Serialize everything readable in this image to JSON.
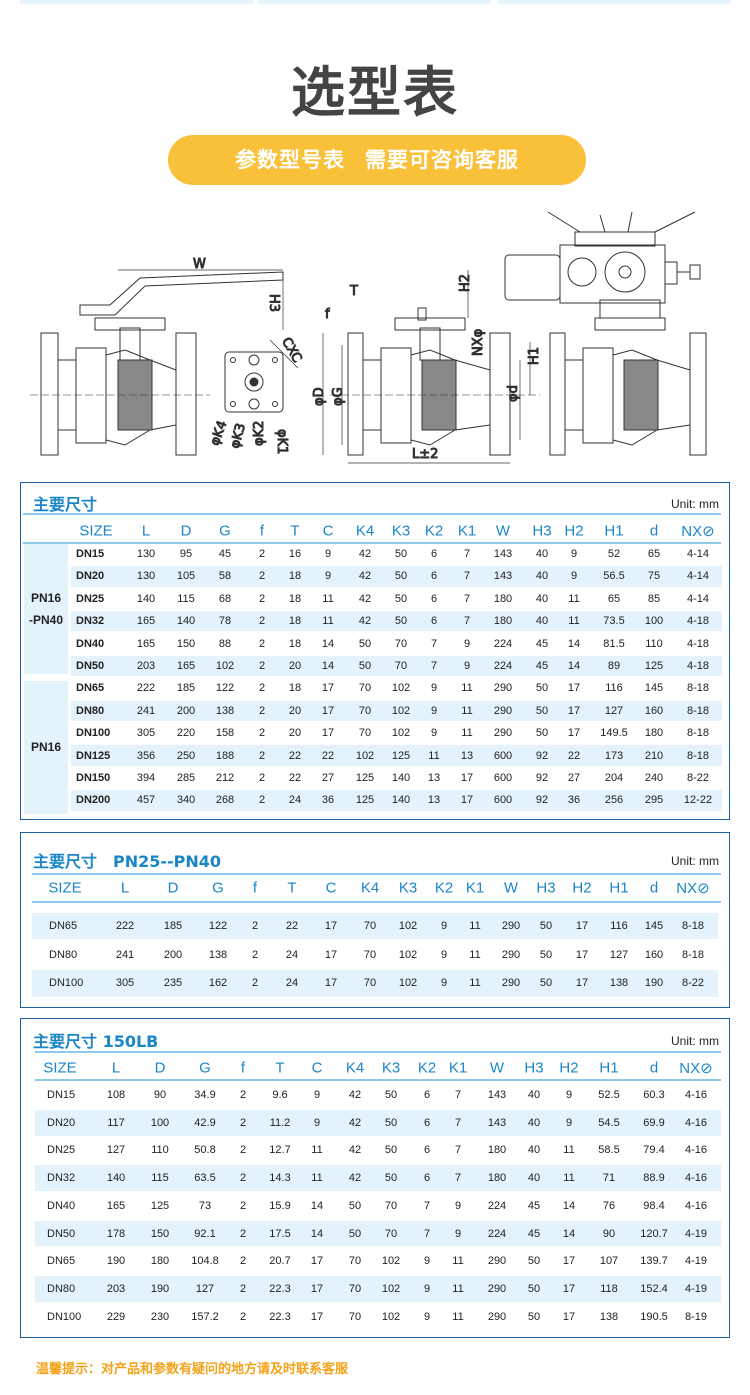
{
  "header": {
    "title": "选型表",
    "pill_left": "参数型号表",
    "pill_right": "需要可咨询客服"
  },
  "drawing": {
    "labels": {
      "W": "W",
      "H3": "H3",
      "CXC": "CXC",
      "K4": "φK4",
      "K3": "φK3",
      "K2": "φK2",
      "K1": "φK1",
      "T": "T",
      "f": "f",
      "D": "φD",
      "G": "φG",
      "L": "L±2",
      "H2": "H2",
      "NX": "NXφ",
      "H1": "H1",
      "d": "φd"
    }
  },
  "columns": [
    "SIZE",
    "L",
    "D",
    "G",
    "f",
    "T",
    "C",
    "K4",
    "K3",
    "K2",
    "K1",
    "W",
    "H3",
    "H2",
    "H1",
    "d",
    "NX⊘"
  ],
  "tables": [
    {
      "title": "主要尺寸",
      "unit": "Unit: mm",
      "groups": [
        {
          "label": "PN16\n-PN40",
          "rows": 6
        },
        {
          "label": "PN16",
          "rows": 6
        }
      ],
      "rows": [
        [
          "DN15",
          "130",
          "95",
          "45",
          "2",
          "16",
          "9",
          "42",
          "50",
          "6",
          "7",
          "143",
          "40",
          "9",
          "52",
          "65",
          "4-14"
        ],
        [
          "DN20",
          "130",
          "105",
          "58",
          "2",
          "18",
          "9",
          "42",
          "50",
          "6",
          "7",
          "143",
          "40",
          "9",
          "56.5",
          "75",
          "4-14"
        ],
        [
          "DN25",
          "140",
          "115",
          "68",
          "2",
          "18",
          "11",
          "42",
          "50",
          "6",
          "7",
          "180",
          "40",
          "11",
          "65",
          "85",
          "4-14"
        ],
        [
          "DN32",
          "165",
          "140",
          "78",
          "2",
          "18",
          "11",
          "42",
          "50",
          "6",
          "7",
          "180",
          "40",
          "11",
          "73.5",
          "100",
          "4-18"
        ],
        [
          "DN40",
          "165",
          "150",
          "88",
          "2",
          "18",
          "14",
          "50",
          "70",
          "7",
          "9",
          "224",
          "45",
          "14",
          "81.5",
          "110",
          "4-18"
        ],
        [
          "DN50",
          "203",
          "165",
          "102",
          "2",
          "20",
          "14",
          "50",
          "70",
          "7",
          "9",
          "224",
          "45",
          "14",
          "89",
          "125",
          "4-18"
        ],
        [
          "DN65",
          "222",
          "185",
          "122",
          "2",
          "18",
          "17",
          "70",
          "102",
          "9",
          "11",
          "290",
          "50",
          "17",
          "116",
          "145",
          "8-18"
        ],
        [
          "DN80",
          "241",
          "200",
          "138",
          "2",
          "20",
          "17",
          "70",
          "102",
          "9",
          "11",
          "290",
          "50",
          "17",
          "127",
          "160",
          "8-18"
        ],
        [
          "DN100",
          "305",
          "220",
          "158",
          "2",
          "20",
          "17",
          "70",
          "102",
          "9",
          "11",
          "290",
          "50",
          "17",
          "149.5",
          "180",
          "8-18"
        ],
        [
          "DN125",
          "356",
          "250",
          "188",
          "2",
          "22",
          "22",
          "102",
          "125",
          "11",
          "13",
          "600",
          "92",
          "22",
          "173",
          "210",
          "8-18"
        ],
        [
          "DN150",
          "394",
          "285",
          "212",
          "2",
          "22",
          "27",
          "125",
          "140",
          "13",
          "17",
          "600",
          "92",
          "27",
          "204",
          "240",
          "8-22"
        ],
        [
          "DN200",
          "457",
          "340",
          "268",
          "2",
          "24",
          "36",
          "125",
          "140",
          "13",
          "17",
          "600",
          "92",
          "36",
          "256",
          "295",
          "12-22"
        ]
      ]
    },
    {
      "title": "主要尺寸　PN25--PN40",
      "unit": "Unit: mm",
      "rows": [
        [
          "DN65",
          "222",
          "185",
          "122",
          "2",
          "22",
          "17",
          "70",
          "102",
          "9",
          "11",
          "290",
          "50",
          "17",
          "116",
          "145",
          "8-18"
        ],
        [
          "DN80",
          "241",
          "200",
          "138",
          "2",
          "24",
          "17",
          "70",
          "102",
          "9",
          "11",
          "290",
          "50",
          "17",
          "127",
          "160",
          "8-18"
        ],
        [
          "DN100",
          "305",
          "235",
          "162",
          "2",
          "24",
          "17",
          "70",
          "102",
          "9",
          "11",
          "290",
          "50",
          "17",
          "138",
          "190",
          "8-22"
        ]
      ]
    },
    {
      "title": "主要尺寸 150LB",
      "unit": "Unit: mm",
      "rows": [
        [
          "DN15",
          "108",
          "90",
          "34.9",
          "2",
          "9.6",
          "9",
          "42",
          "50",
          "6",
          "7",
          "143",
          "40",
          "9",
          "52.5",
          "60.3",
          "4-16"
        ],
        [
          "DN20",
          "117",
          "100",
          "42.9",
          "2",
          "11.2",
          "9",
          "42",
          "50",
          "6",
          "7",
          "143",
          "40",
          "9",
          "54.5",
          "69.9",
          "4-16"
        ],
        [
          "DN25",
          "127",
          "110",
          "50.8",
          "2",
          "12.7",
          "11",
          "42",
          "50",
          "6",
          "7",
          "180",
          "40",
          "11",
          "58.5",
          "79.4",
          "4-16"
        ],
        [
          "DN32",
          "140",
          "115",
          "63.5",
          "2",
          "14.3",
          "11",
          "42",
          "50",
          "6",
          "7",
          "180",
          "40",
          "11",
          "71",
          "88.9",
          "4-16"
        ],
        [
          "DN40",
          "165",
          "125",
          "73",
          "2",
          "15.9",
          "14",
          "50",
          "70",
          "7",
          "9",
          "224",
          "45",
          "14",
          "76",
          "98.4",
          "4-16"
        ],
        [
          "DN50",
          "178",
          "150",
          "92.1",
          "2",
          "17.5",
          "14",
          "50",
          "70",
          "7",
          "9",
          "224",
          "45",
          "14",
          "90",
          "120.7",
          "4-19"
        ],
        [
          "DN65",
          "190",
          "180",
          "104.8",
          "2",
          "20.7",
          "17",
          "70",
          "102",
          "9",
          "11",
          "290",
          "50",
          "17",
          "107",
          "139.7",
          "4-19"
        ],
        [
          "DN80",
          "203",
          "190",
          "127",
          "2",
          "22.3",
          "17",
          "70",
          "102",
          "9",
          "11",
          "290",
          "50",
          "17",
          "118",
          "152.4",
          "4-19"
        ],
        [
          "DN100",
          "229",
          "230",
          "157.2",
          "2",
          "22.3",
          "17",
          "70",
          "102",
          "9",
          "11",
          "290",
          "50",
          "17",
          "138",
          "190.5",
          "8-19"
        ]
      ]
    }
  ],
  "footer": {
    "note": "温馨提示：对产品和参数有疑问的地方请及时联系客服"
  },
  "colors": {
    "accent": "#1a86c8",
    "border": "#1a5fa8",
    "stripe": "#e3f2fb",
    "pill": "#f9c03a",
    "note": "#f3a21a"
  }
}
